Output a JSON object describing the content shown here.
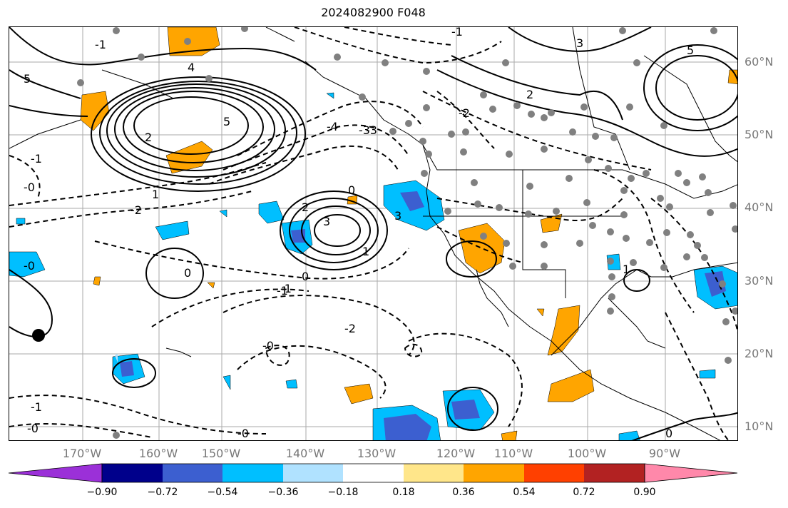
{
  "title": "2024082900 F048",
  "lat_labels": [
    "60°N",
    "50°N",
    "40°N",
    "30°N",
    "20°N",
    "10°N"
  ],
  "lon_labels": [
    "170°W",
    "160°W",
    "150°W",
    "140°W",
    "130°W",
    "120°W",
    "110°W",
    "100°W",
    "90°W"
  ],
  "colorbar": {
    "ticks": [
      "−0.90",
      "−0.72",
      "−0.54",
      "−0.36",
      "−0.18",
      "0.18",
      "0.36",
      "0.54",
      "0.72",
      "0.90"
    ],
    "colors": [
      "#9b30d8",
      "#00008b",
      "#3c5fd0",
      "#00bfff",
      "#b0e2ff",
      "#ffffff",
      "#ffe68a",
      "#ffa500",
      "#ff4000",
      "#b22222",
      "#ff88aa"
    ]
  },
  "contour_labels": [
    "1",
    "4",
    "5",
    "5",
    "3",
    "2",
    "5",
    "2",
    "3",
    "0",
    "-1",
    "-2",
    "-3",
    "-4",
    "-1",
    "-2",
    "-0",
    "-0",
    "-2",
    "-1",
    "-0",
    "0",
    "3",
    "2",
    "1",
    "0",
    "-1",
    "-0",
    "-1",
    "-0",
    "-1",
    "-3",
    "0",
    "1"
  ]
}
